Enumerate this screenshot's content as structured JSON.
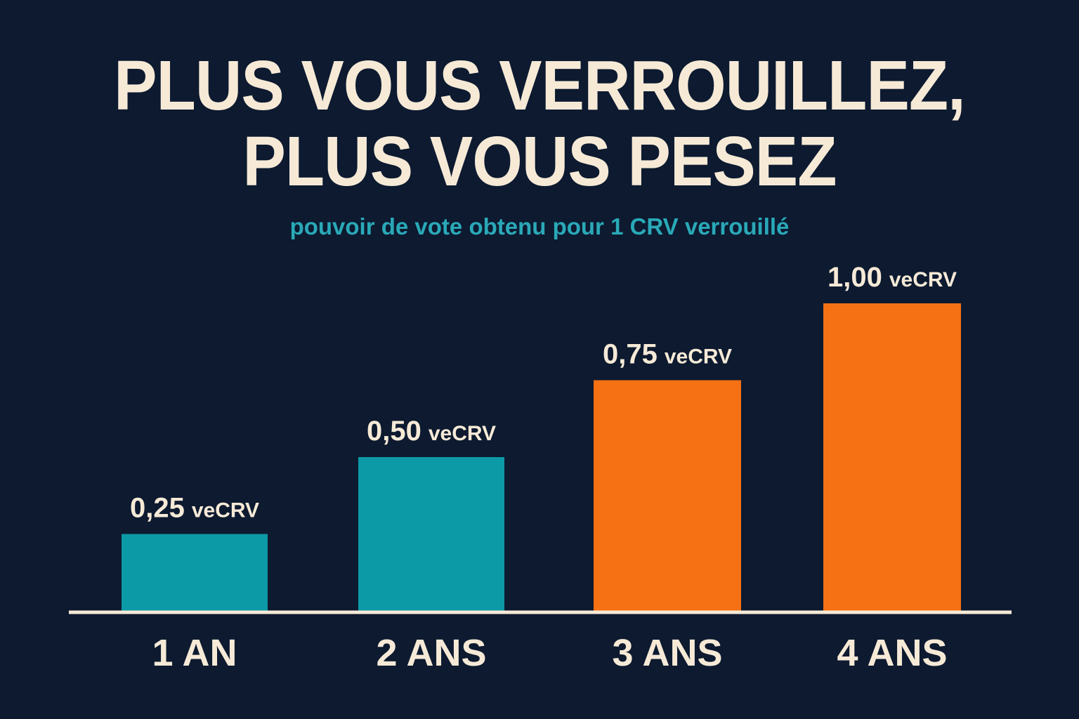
{
  "header": {
    "title_line1": "PLUS VOUS VERROUILLEZ,",
    "title_line2": "PLUS VOUS PESEZ",
    "subtitle": "pouvoir de vote obtenu pour 1 CRV verrouillé"
  },
  "chart_data": {
    "type": "bar",
    "title": "PLUS VOUS VERROUILLEZ, PLUS VOUS PESEZ",
    "subtitle": "pouvoir de vote obtenu pour 1 CRV verrouillé",
    "categories": [
      "1 AN",
      "2 ANS",
      "3 ANS",
      "4 ANS"
    ],
    "values": [
      0.25,
      0.5,
      0.75,
      1.0
    ],
    "data_labels": [
      "0,25",
      "0,50",
      "0,75",
      "1,00"
    ],
    "unit": "veCRV",
    "ylim": [
      0,
      1.0
    ],
    "grid": false,
    "legend": "none",
    "colors": [
      "#0c9aa6",
      "#0c9aa6",
      "#f57114",
      "#f57114"
    ]
  },
  "colors": {
    "background": "#0d1a30",
    "text": "#f6ead7",
    "subtitle": "#2aa9b8",
    "axis": "#f6ead7"
  }
}
